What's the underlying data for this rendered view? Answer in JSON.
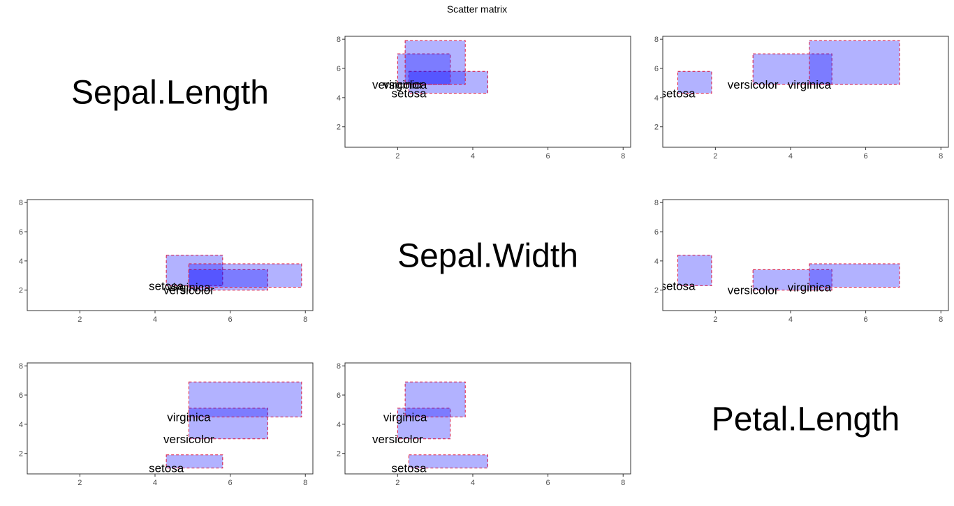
{
  "title": "Scatter matrix",
  "variables": [
    "Sepal.Length",
    "Sepal.Width",
    "Petal.Length"
  ],
  "style": {
    "fill": "#0000ff",
    "fill_opacity": 0.3,
    "stroke": "#dc143c",
    "panel_border": "#333333",
    "tick_color": "#4d4d4d"
  },
  "chart_data": {
    "type": "scatter-matrix",
    "title": "Scatter matrix",
    "geom": "range rectangles per species with species labels",
    "xlim": [
      0.6,
      8.2
    ],
    "ylim": [
      0.6,
      8.2
    ],
    "x_ticks": [
      2,
      4,
      6,
      8
    ],
    "y_ticks": [
      2,
      4,
      6,
      8
    ],
    "grid": false,
    "groups": [
      "setosa",
      "versicolor",
      "virginica"
    ],
    "ranges": {
      "Sepal.Length": {
        "setosa": [
          4.3,
          5.8
        ],
        "versicolor": [
          4.9,
          7.0
        ],
        "virginica": [
          4.9,
          7.9
        ]
      },
      "Sepal.Width": {
        "setosa": [
          2.3,
          4.4
        ],
        "versicolor": [
          2.0,
          3.4
        ],
        "virginica": [
          2.2,
          3.8
        ]
      },
      "Petal.Length": {
        "setosa": [
          1.0,
          1.9
        ],
        "versicolor": [
          3.0,
          5.1
        ],
        "virginica": [
          4.5,
          6.9
        ]
      }
    },
    "minimums": {
      "Sepal.Length": {
        "setosa": 4.3,
        "versicolor": 4.9,
        "virginica": 4.9
      },
      "Sepal.Width": {
        "setosa": 2.3,
        "versicolor": 2.0,
        "virginica": 2.2
      },
      "Petal.Length": {
        "setosa": 1.0,
        "versicolor": 3.0,
        "virginica": 4.5
      }
    }
  }
}
